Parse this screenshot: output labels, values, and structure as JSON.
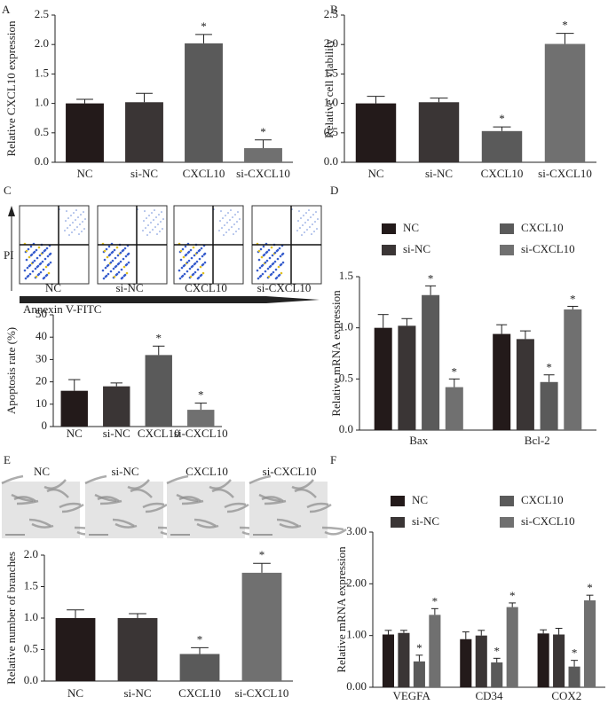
{
  "chart_data": [
    {
      "type": "bar",
      "panel": "A",
      "ylabel": "Relative CXCL10 expression",
      "categories": [
        "NC",
        "si-NC",
        "CXCL10",
        "si-CXCL10"
      ],
      "values": [
        1.0,
        1.02,
        2.02,
        0.24
      ],
      "errors": [
        0.07,
        0.15,
        0.15,
        0.14
      ],
      "colors": [
        "#231a1a",
        "#3a3535",
        "#5a5a5a",
        "#707070"
      ],
      "significant": [
        false,
        false,
        true,
        true
      ],
      "sig_label": "*",
      "ylim": [
        0,
        2.5
      ],
      "yticks": [
        {
          "value": 0,
          "label": "0.0"
        },
        {
          "value": 0.5,
          "label": "0.5"
        },
        {
          "value": 1,
          "label": "1.0"
        },
        {
          "value": 1.5,
          "label": "1.5"
        },
        {
          "value": 2,
          "label": "2.0"
        },
        {
          "value": 2.5,
          "label": "2.5"
        }
      ]
    },
    {
      "type": "bar",
      "panel": "B",
      "ylabel": "Relative cell viability",
      "categories": [
        "NC",
        "si-NC",
        "CXCL10",
        "si-CXCL10"
      ],
      "values": [
        1.0,
        1.02,
        0.53,
        2.01
      ],
      "errors": [
        0.12,
        0.07,
        0.07,
        0.18
      ],
      "colors": [
        "#231a1a",
        "#3a3535",
        "#5a5a5a",
        "#707070"
      ],
      "significant": [
        false,
        false,
        true,
        true
      ],
      "sig_label": "*",
      "ylim": [
        0,
        2.5
      ],
      "yticks": [
        {
          "value": 0,
          "label": "0.0"
        },
        {
          "value": 0.5,
          "label": "0.5"
        },
        {
          "value": 1,
          "label": "1.0"
        },
        {
          "value": 1.5,
          "label": "1.5"
        },
        {
          "value": 2,
          "label": "2.0"
        },
        {
          "value": 2.5,
          "label": "2.5"
        }
      ]
    },
    {
      "type": "bar",
      "panel": "C",
      "ylabel": "Apoptosis rate (%)",
      "categories": [
        "NC",
        "si-NC",
        "CXCL10",
        "si-CXCL10"
      ],
      "values": [
        16,
        18,
        32,
        7.5
      ],
      "errors": [
        5,
        1.5,
        4,
        3
      ],
      "colors": [
        "#231a1a",
        "#3a3535",
        "#5a5a5a",
        "#707070"
      ],
      "significant": [
        false,
        false,
        true,
        true
      ],
      "sig_label": "*",
      "ylim": [
        0,
        50
      ],
      "yticks": [
        0,
        10,
        20,
        30,
        40,
        50
      ]
    },
    {
      "type": "grouped_bar",
      "panel": "D",
      "ylabel": "Relative mRNA expression",
      "categories": [
        "Bax",
        "Bcl-2"
      ],
      "series": [
        {
          "name": "NC",
          "color": "#231a1a",
          "values": [
            1.0,
            0.94
          ],
          "errors": [
            0.13,
            0.09
          ],
          "significant": [
            false,
            false
          ]
        },
        {
          "name": "si-NC",
          "color": "#3a3535",
          "values": [
            1.02,
            0.89
          ],
          "errors": [
            0.07,
            0.08
          ],
          "significant": [
            false,
            false
          ]
        },
        {
          "name": "CXCL10",
          "color": "#5a5a5a",
          "values": [
            1.32,
            0.47
          ],
          "errors": [
            0.09,
            0.07
          ],
          "significant": [
            true,
            true
          ]
        },
        {
          "name": "si-CXCL10",
          "color": "#707070",
          "values": [
            0.42,
            1.18
          ],
          "errors": [
            0.08,
            0.03
          ],
          "significant": [
            true,
            true
          ]
        }
      ],
      "sig_label": "*",
      "ylim": [
        0,
        1.5
      ],
      "yticks": [
        {
          "value": 0,
          "label": "0.0"
        },
        {
          "value": 0.5,
          "label": "0.5"
        },
        {
          "value": 1,
          "label": "1.0"
        },
        {
          "value": 1.5,
          "label": "1.5"
        }
      ]
    },
    {
      "type": "bar",
      "panel": "E",
      "ylabel": "Relative number of  branches",
      "categories": [
        "NC",
        "si-NC",
        "CXCL10",
        "si-CXCL10"
      ],
      "values": [
        1.0,
        1.0,
        0.43,
        1.72
      ],
      "errors": [
        0.13,
        0.07,
        0.1,
        0.15
      ],
      "colors": [
        "#231a1a",
        "#3a3535",
        "#5a5a5a",
        "#707070"
      ],
      "significant": [
        false,
        false,
        true,
        true
      ],
      "sig_label": "*",
      "ylim": [
        0,
        2
      ],
      "yticks": [
        {
          "value": 0,
          "label": "0.0"
        },
        {
          "value": 0.5,
          "label": "0.5"
        },
        {
          "value": 1,
          "label": "1.0"
        },
        {
          "value": 1.5,
          "label": "1.5"
        },
        {
          "value": 2,
          "label": "2.0"
        }
      ]
    },
    {
      "type": "grouped_bar",
      "panel": "F",
      "ylabel": "Relative  mRNA expression",
      "categories": [
        "VEGFA",
        "CD34",
        "COX2"
      ],
      "series": [
        {
          "name": "NC",
          "color": "#231a1a",
          "values": [
            1.02,
            0.93,
            1.04
          ],
          "errors": [
            0.08,
            0.14,
            0.07
          ],
          "significant": [
            false,
            false,
            false
          ]
        },
        {
          "name": "si-NC",
          "color": "#3a3535",
          "values": [
            1.05,
            1.0,
            1.02
          ],
          "errors": [
            0.05,
            0.1,
            0.12
          ],
          "significant": [
            false,
            false,
            false
          ]
        },
        {
          "name": "CXCL10",
          "color": "#5a5a5a",
          "values": [
            0.5,
            0.48,
            0.4
          ],
          "errors": [
            0.12,
            0.08,
            0.12
          ],
          "significant": [
            true,
            true,
            true
          ]
        },
        {
          "name": "si-CXCL10",
          "color": "#707070",
          "values": [
            1.4,
            1.55,
            1.68
          ],
          "errors": [
            0.12,
            0.08,
            0.1
          ],
          "significant": [
            true,
            true,
            true
          ]
        }
      ],
      "sig_label": "*",
      "ylim": [
        0,
        3
      ],
      "yticks": [
        {
          "value": 0,
          "label": "0.00"
        },
        {
          "value": 1,
          "label": "1.00"
        },
        {
          "value": 2,
          "label": "2.00"
        },
        {
          "value": 3,
          "label": "3.00"
        }
      ]
    }
  ],
  "flow_plots": {
    "y_label": "PI",
    "x_label": "Annexin V-FITC",
    "samples": [
      "NC",
      "si-NC",
      "CXCL10",
      "si-CXCL10"
    ]
  },
  "micrographs": {
    "samples": [
      "NC",
      "si-NC",
      "CXCL10",
      "si-CXCL10"
    ]
  }
}
